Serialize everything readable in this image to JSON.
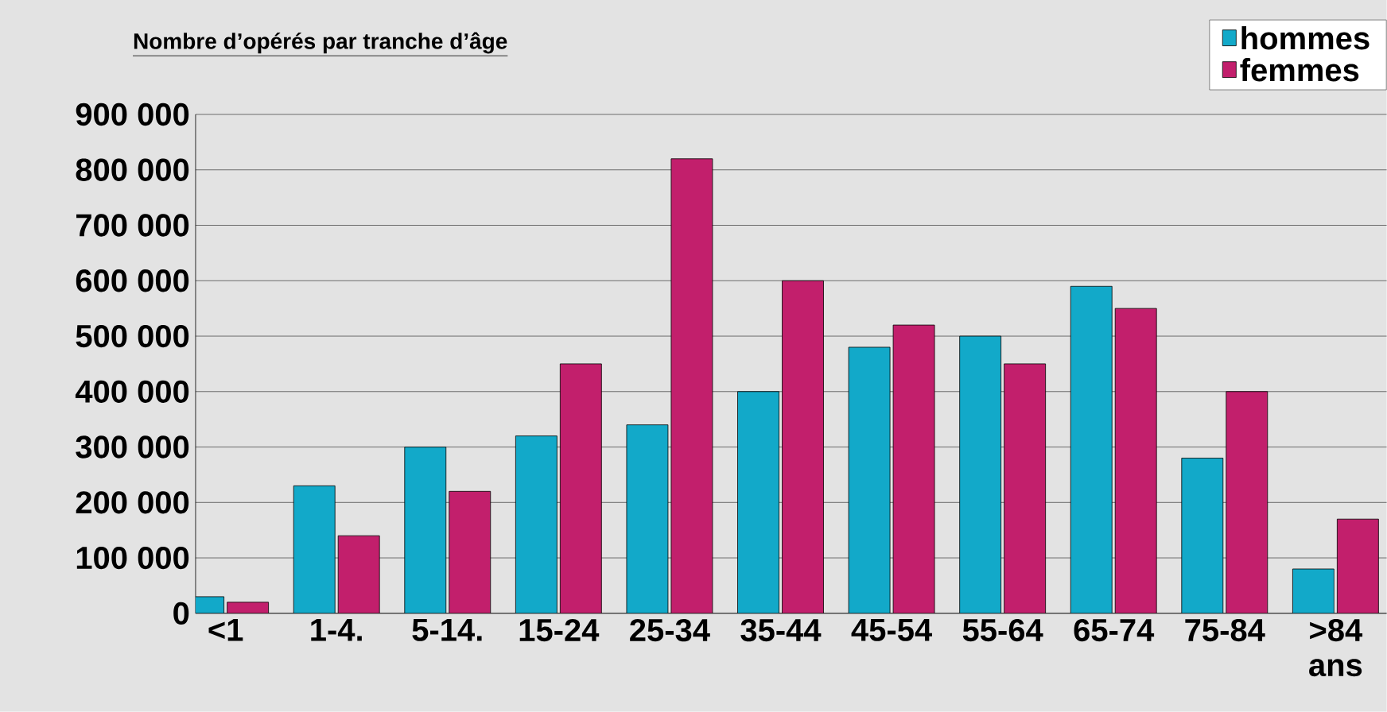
{
  "chart_data": {
    "type": "bar",
    "title": "Nombre d’opérés par tranche d’âge",
    "categories": [
      "<1",
      "1-4.",
      "5-14.",
      "15-24",
      "25-34",
      "35-44",
      "45-54",
      "55-64",
      "65-74",
      "75-84",
      ">84 ans"
    ],
    "series": [
      {
        "name": "hommes",
        "color": "#12a9c9",
        "values": [
          30000,
          230000,
          300000,
          320000,
          340000,
          400000,
          480000,
          500000,
          590000,
          280000,
          80000
        ]
      },
      {
        "name": "femmes",
        "color": "#c21f6c",
        "values": [
          20000,
          140000,
          220000,
          450000,
          820000,
          600000,
          520000,
          450000,
          550000,
          400000,
          170000
        ]
      }
    ],
    "ylim": [
      0,
      900000
    ],
    "yticks": [
      {
        "value": 0,
        "label": "0"
      },
      {
        "value": 100000,
        "label": "100 000"
      },
      {
        "value": 200000,
        "label": "200 000"
      },
      {
        "value": 300000,
        "label": "300 000"
      },
      {
        "value": 400000,
        "label": "400 000"
      },
      {
        "value": 500000,
        "label": "500 000"
      },
      {
        "value": 600000,
        "label": "600 000"
      },
      {
        "value": 700000,
        "label": "700 000"
      },
      {
        "value": 800000,
        "label": "800 000"
      },
      {
        "value": 900000,
        "label": "900 000"
      }
    ],
    "grid": "y",
    "legend": "top right"
  }
}
